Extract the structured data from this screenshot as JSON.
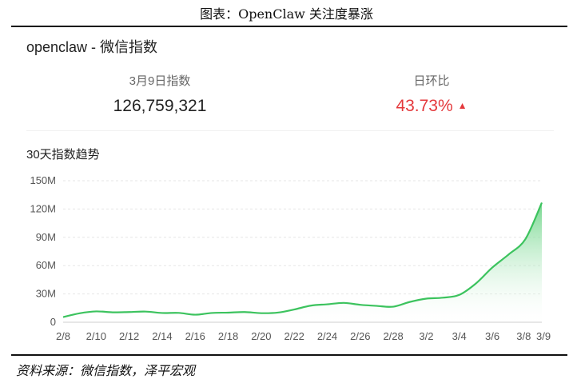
{
  "figure": {
    "title": "图表：OpenClaw 关注度暴涨",
    "source": "资料来源：微信指数，泽平宏观"
  },
  "panel": {
    "title": "openclaw - 微信指数",
    "stats": [
      {
        "label": "3月9日指数",
        "value": "126,759,321"
      },
      {
        "label": "日环比",
        "value": "43.73%"
      }
    ],
    "trend_title": "30天指数趋势",
    "up_icon": "triangle-up-icon"
  },
  "colors": {
    "line": "#3cc35e",
    "fill_top": "#5dd07a",
    "fill_bottom": "#ffffff",
    "down_value": "#e4393c",
    "grid": "#e6e6e6"
  },
  "chart_data": {
    "type": "area",
    "title": "",
    "xlabel": "",
    "ylabel": "",
    "ylim": [
      0,
      150000000
    ],
    "yticks": [
      0,
      30000000,
      60000000,
      90000000,
      120000000,
      150000000
    ],
    "ytick_labels": [
      "0",
      "30M",
      "60M",
      "90M",
      "120M",
      "150M"
    ],
    "x": [
      "2/8",
      "2/9",
      "2/10",
      "2/11",
      "2/12",
      "2/13",
      "2/14",
      "2/15",
      "2/16",
      "2/17",
      "2/18",
      "2/19",
      "2/20",
      "2/21",
      "2/22",
      "2/23",
      "2/24",
      "2/25",
      "2/26",
      "2/27",
      "2/28",
      "3/1",
      "3/2",
      "3/3",
      "3/4",
      "3/5",
      "3/6",
      "3/7",
      "3/8",
      "3/9"
    ],
    "xtick_labels": [
      "2/8",
      "2/10",
      "2/12",
      "2/14",
      "2/16",
      "2/18",
      "2/20",
      "2/22",
      "2/24",
      "2/26",
      "2/28",
      "3/2",
      "3/4",
      "3/6",
      "3/8",
      "3/9"
    ],
    "series": [
      {
        "name": "",
        "values": [
          5500000,
          9500000,
          11500000,
          10500000,
          10800000,
          11300000,
          9800000,
          9900000,
          8000000,
          9800000,
          10200000,
          10800000,
          9600000,
          10200000,
          13500000,
          17600000,
          19000000,
          20500000,
          18500000,
          17300000,
          16500000,
          21500000,
          25000000,
          26000000,
          29000000,
          41000000,
          58000000,
          72000000,
          88000000,
          126759321
        ]
      }
    ],
    "grid": true,
    "legend": "none"
  }
}
